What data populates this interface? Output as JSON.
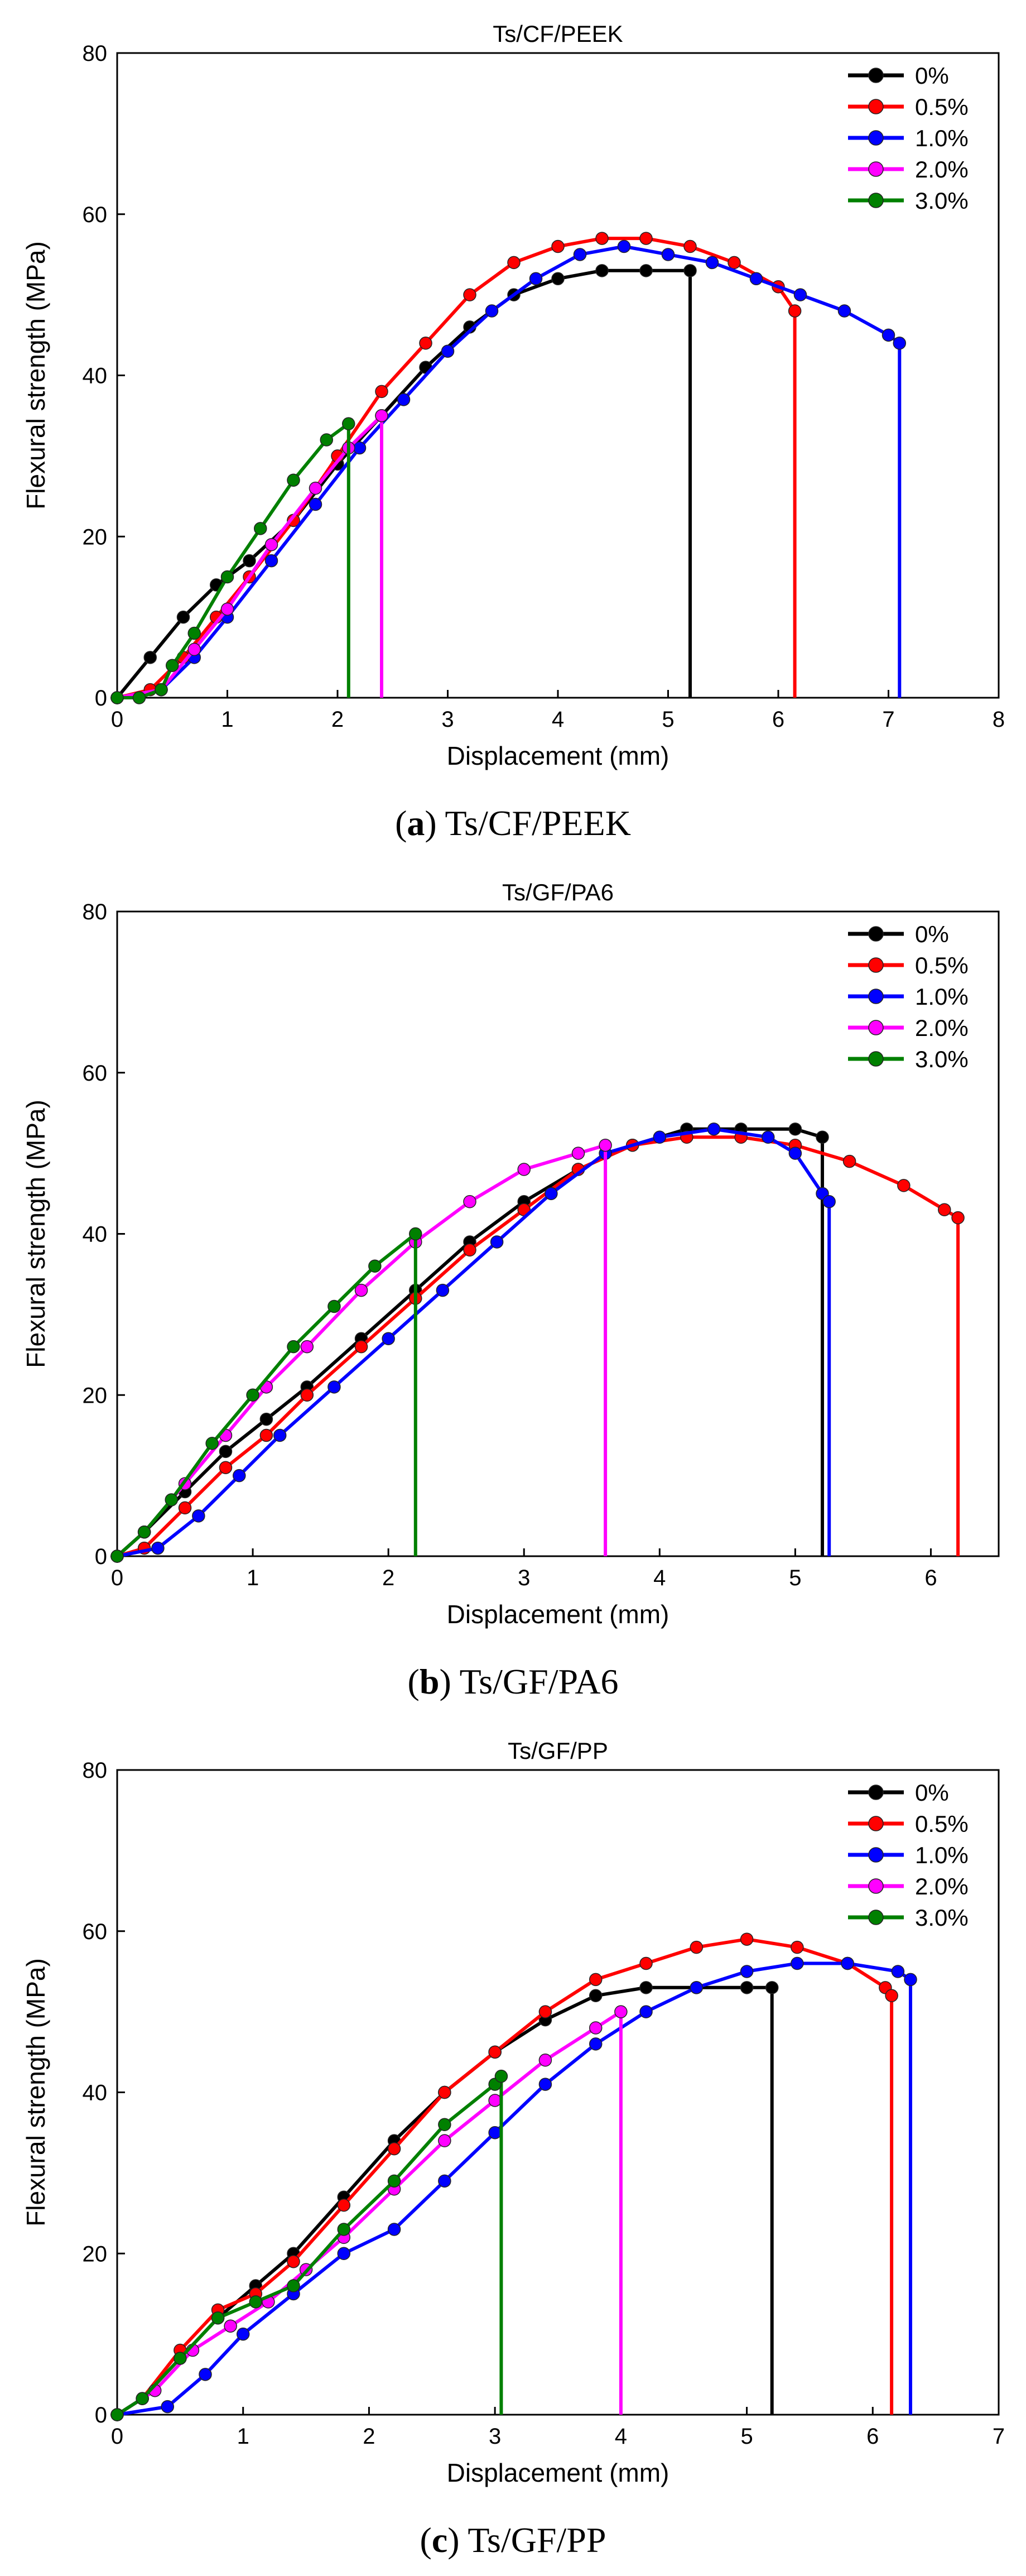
{
  "chart_data": [
    {
      "type": "line",
      "title": "Ts/CF/PEEK",
      "caption_letter": "a",
      "caption_text": "Ts/CF/PEEK",
      "xlabel": "Displacement (mm)",
      "ylabel": "Flexural strength (MPa)",
      "xlim": [
        0,
        8
      ],
      "ylim": [
        0,
        80
      ],
      "xticks": [
        0,
        1,
        2,
        3,
        4,
        5,
        6,
        7,
        8
      ],
      "yticks": [
        0,
        20,
        40,
        60,
        80
      ],
      "legend": "top-right",
      "series": [
        {
          "name": "0%",
          "color": "#000000",
          "x": [
            0,
            0.3,
            0.6,
            0.9,
            1.2,
            1.6,
            2.0,
            2.4,
            2.8,
            3.2,
            3.6,
            4.0,
            4.4,
            4.8,
            5.2,
            5.2
          ],
          "y": [
            0,
            5,
            10,
            14,
            17,
            22,
            29,
            35,
            41,
            46,
            50,
            52,
            53,
            53,
            53,
            0
          ]
        },
        {
          "name": "0.5%",
          "color": "#ff0000",
          "x": [
            0,
            0.3,
            0.6,
            0.9,
            1.2,
            1.6,
            2.0,
            2.4,
            2.8,
            3.2,
            3.6,
            4.0,
            4.4,
            4.8,
            5.2,
            5.6,
            6.0,
            6.15,
            6.15
          ],
          "y": [
            0,
            1,
            5,
            10,
            15,
            22,
            30,
            38,
            44,
            50,
            54,
            56,
            57,
            57,
            56,
            54,
            51,
            48,
            0
          ]
        },
        {
          "name": "1.0%",
          "color": "#0000ff",
          "x": [
            0,
            0.4,
            0.7,
            1.0,
            1.4,
            1.8,
            2.2,
            2.6,
            3.0,
            3.4,
            3.8,
            4.2,
            4.6,
            5.0,
            5.4,
            5.8,
            6.2,
            6.6,
            7.0,
            7.1,
            7.1
          ],
          "y": [
            0,
            1,
            5,
            10,
            17,
            24,
            31,
            37,
            43,
            48,
            52,
            55,
            56,
            55,
            54,
            52,
            50,
            48,
            45,
            44,
            0
          ]
        },
        {
          "name": "2.0%",
          "color": "#ff00ff",
          "x": [
            0,
            0.4,
            0.7,
            1.0,
            1.4,
            1.8,
            2.1,
            2.4,
            2.4
          ],
          "y": [
            0,
            1,
            6,
            11,
            19,
            26,
            31,
            35,
            0
          ]
        },
        {
          "name": "3.0%",
          "color": "#008000",
          "x": [
            0,
            0.2,
            0.4,
            0.5,
            0.7,
            1.0,
            1.3,
            1.6,
            1.9,
            2.1,
            2.1
          ],
          "y": [
            0,
            0,
            1,
            4,
            8,
            15,
            21,
            27,
            32,
            34,
            0
          ]
        }
      ]
    },
    {
      "type": "line",
      "title": "Ts/GF/PA6",
      "caption_letter": "b",
      "caption_text": "Ts/GF/PA6",
      "xlabel": "Displacement (mm)",
      "ylabel": "Flexural strength (MPa)",
      "xlim": [
        0,
        6.5
      ],
      "ylim": [
        0,
        80
      ],
      "xticks": [
        0,
        1,
        2,
        3,
        4,
        5,
        6
      ],
      "yticks": [
        0,
        20,
        40,
        60,
        80
      ],
      "legend": "top-right",
      "series": [
        {
          "name": "0%",
          "color": "#000000",
          "x": [
            0,
            0.2,
            0.5,
            0.8,
            1.1,
            1.4,
            1.8,
            2.2,
            2.6,
            3.0,
            3.4,
            3.8,
            4.2,
            4.6,
            5.0,
            5.2,
            5.2
          ],
          "y": [
            0,
            3,
            8,
            13,
            17,
            21,
            27,
            33,
            39,
            44,
            48,
            51,
            53,
            53,
            53,
            52,
            0
          ]
        },
        {
          "name": "0.5%",
          "color": "#ff0000",
          "x": [
            0,
            0.2,
            0.5,
            0.8,
            1.1,
            1.4,
            1.8,
            2.2,
            2.6,
            3.0,
            3.4,
            3.8,
            4.2,
            4.6,
            5.0,
            5.4,
            5.8,
            6.1,
            6.2,
            6.2
          ],
          "y": [
            0,
            1,
            6,
            11,
            15,
            20,
            26,
            32,
            38,
            43,
            48,
            51,
            52,
            52,
            51,
            49,
            46,
            43,
            42,
            0
          ]
        },
        {
          "name": "1.0%",
          "color": "#0000ff",
          "x": [
            0,
            0.3,
            0.6,
            0.9,
            1.2,
            1.6,
            2.0,
            2.4,
            2.8,
            3.2,
            3.6,
            4.0,
            4.4,
            4.8,
            5.0,
            5.2,
            5.25,
            5.25
          ],
          "y": [
            0,
            1,
            5,
            10,
            15,
            21,
            27,
            33,
            39,
            45,
            50,
            52,
            53,
            52,
            50,
            45,
            44,
            0
          ]
        },
        {
          "name": "2.0%",
          "color": "#ff00ff",
          "x": [
            0,
            0.2,
            0.5,
            0.8,
            1.1,
            1.4,
            1.8,
            2.2,
            2.6,
            3.0,
            3.4,
            3.6,
            3.6
          ],
          "y": [
            0,
            3,
            9,
            15,
            21,
            26,
            33,
            39,
            44,
            48,
            50,
            51,
            0
          ]
        },
        {
          "name": "3.0%",
          "color": "#008000",
          "x": [
            0,
            0.2,
            0.4,
            0.7,
            1.0,
            1.3,
            1.6,
            1.9,
            2.2,
            2.2
          ],
          "y": [
            0,
            3,
            7,
            14,
            20,
            26,
            31,
            36,
            40,
            0
          ]
        }
      ]
    },
    {
      "type": "line",
      "title": "Ts/GF/PP",
      "caption_letter": "c",
      "caption_text": "Ts/GF/PP",
      "xlabel": "Displacement (mm)",
      "ylabel": "Flexural strength (MPa)",
      "xlim": [
        0,
        7
      ],
      "ylim": [
        0,
        80
      ],
      "xticks": [
        0,
        1,
        2,
        3,
        4,
        5,
        6,
        7
      ],
      "yticks": [
        0,
        20,
        40,
        60,
        80
      ],
      "legend": "top-right",
      "series": [
        {
          "name": "0%",
          "color": "#000000",
          "x": [
            0,
            0.2,
            0.5,
            0.8,
            1.1,
            1.4,
            1.8,
            2.2,
            2.6,
            3.0,
            3.4,
            3.8,
            4.2,
            4.6,
            5.0,
            5.2,
            5.2
          ],
          "y": [
            0,
            2,
            7,
            12,
            16,
            20,
            27,
            34,
            40,
            45,
            49,
            52,
            53,
            53,
            53,
            53,
            0
          ]
        },
        {
          "name": "0.5%",
          "color": "#ff0000",
          "x": [
            0,
            0.2,
            0.5,
            0.8,
            1.1,
            1.4,
            1.8,
            2.2,
            2.6,
            3.0,
            3.4,
            3.8,
            4.2,
            4.6,
            5.0,
            5.4,
            5.8,
            6.1,
            6.15,
            6.15
          ],
          "y": [
            0,
            2,
            8,
            13,
            15,
            19,
            26,
            33,
            40,
            45,
            50,
            54,
            56,
            58,
            59,
            58,
            56,
            53,
            52,
            0
          ]
        },
        {
          "name": "1.0%",
          "color": "#0000ff",
          "x": [
            0,
            0.4,
            0.7,
            1.0,
            1.4,
            1.8,
            2.2,
            2.6,
            3.0,
            3.4,
            3.8,
            4.2,
            4.6,
            5.0,
            5.4,
            5.8,
            6.2,
            6.3,
            6.3
          ],
          "y": [
            0,
            1,
            5,
            10,
            15,
            20,
            23,
            29,
            35,
            41,
            46,
            50,
            53,
            55,
            56,
            56,
            55,
            54,
            0
          ]
        },
        {
          "name": "2.0%",
          "color": "#ff00ff",
          "x": [
            0,
            0.3,
            0.6,
            0.9,
            1.2,
            1.5,
            1.8,
            2.2,
            2.6,
            3.0,
            3.4,
            3.8,
            4.0,
            4.0
          ],
          "y": [
            0,
            3,
            8,
            11,
            14,
            18,
            22,
            28,
            34,
            39,
            44,
            48,
            50,
            0
          ]
        },
        {
          "name": "3.0%",
          "color": "#008000",
          "x": [
            0,
            0.2,
            0.5,
            0.8,
            1.1,
            1.4,
            1.8,
            2.2,
            2.6,
            3.0,
            3.05,
            3.05
          ],
          "y": [
            0,
            2,
            7,
            12,
            14,
            16,
            23,
            29,
            36,
            41,
            42,
            0
          ]
        }
      ]
    }
  ]
}
